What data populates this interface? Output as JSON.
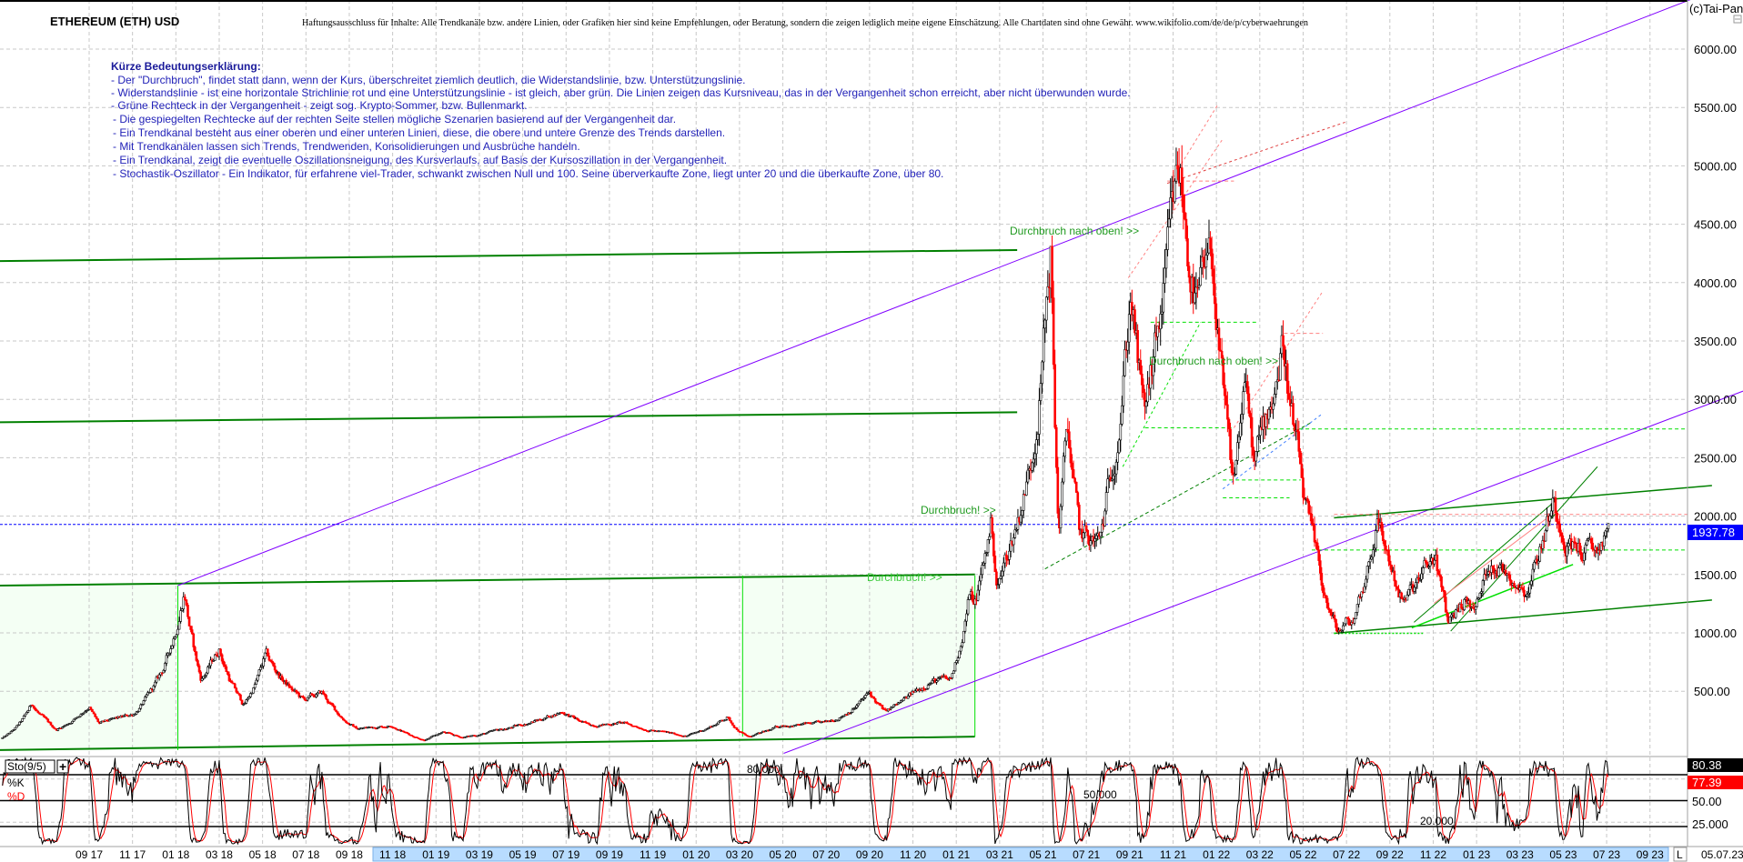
{
  "header": {
    "title": "ETHEREUM (ETH) USD",
    "disclaimer": "Haftungsausschluss für Inhalte: Alle Trendkanäle bzw. andere Linien, oder Grafiken hier sind keine Empfehlungen, oder Beratung, sondern die zeigen lediglich meine eigene Einschätzung. Alle Chartdaten sind ohne Gewähr.  www.wikifolio.com/de/de/p/cyberwaehrungen",
    "copyright": "(c)Tai-Pan"
  },
  "legend": {
    "title": "Kürze Bedeutungserklärung:",
    "items": [
      "- Der \"Durchbruch\", findet statt dann, wenn der Kurs, überschreitet ziemlich deutlich, die Widerstandslinie, bzw. Unterstützungslinie.",
      "- Widerstandslinie - ist eine horizontale Strichlinie rot und eine Unterstützungslinie - ist gleich, aber grün. Die Linien zeigen das Kursniveau, das in der Vergangenheit schon erreicht, aber nicht überwunden wurde.",
      "- Grüne Rechteck in der Vergangenheit - zeigt sog. Krypto-Sommer, bzw. Bullenmarkt.",
      "- Die gespiegelten Rechtecke auf der rechten Seite stellen mögliche Szenarien basierend auf der Vergangenheit dar.",
      "- Ein Trendkanal besteht aus einer oberen und einer unteren Linien, diese, die obere und untere Grenze des Trends darstellen.",
      "- Mit Trendkanälen lassen sich Trends, Trendwenden, Konsolidierungen und Ausbrüche handeln.",
      "- Ein Trendkanal, zeigt die eventuelle Oszillationsneigung, des Kursverlaufs, auf Basis der Kursoszillation in der Vergangenheit.",
      "- Stochastik-Oszillator - Ein Indikator, für erfahrene viel-Trader, schwankt zwischen Null und 100. Seine überverkaufte Zone, liegt unter 20 und die überkaufte Zone, über 80."
    ]
  },
  "annotations": {
    "breakout_up_1": "Durchbruch nach oben! >>",
    "breakout_up_2": "Durchbruch nach oben! >>",
    "breakout_1": "Durchbruch! >>",
    "breakout_2": "Durchbruch! >>"
  },
  "price_axis": {
    "ticks": [
      "6000.00",
      "5500.00",
      "5000.00",
      "4500.00",
      "4000.00",
      "3500.00",
      "3000.00",
      "2500.00",
      "2000.00",
      "1500.00",
      "1000.00",
      "500.00"
    ],
    "current_price": "1937.78"
  },
  "stochastic": {
    "name": "Sto(9/5)",
    "k_label": "%K",
    "d_label": "%D",
    "k_value": "80.38",
    "d_value": "77.39",
    "ticks": [
      "50.00",
      "25.000"
    ],
    "level_labels": [
      "80.000",
      "50.000",
      "20.000"
    ]
  },
  "date_axis": {
    "labels": [
      "09 17",
      "11 17",
      "01 18",
      "03 18",
      "05 18",
      "07 18",
      "09 18",
      "11 18",
      "01 19",
      "03 19",
      "05 19",
      "07 19",
      "09 19",
      "11 19",
      "01 20",
      "03 20",
      "05 20",
      "07 20",
      "09 20",
      "11 20",
      "01 21",
      "03 21",
      "05 21",
      "07 21",
      "09 21",
      "11 21",
      "01 22",
      "03 22",
      "05 22",
      "07 22",
      "09 22",
      "11 22",
      "01 23",
      "03 23",
      "05 23",
      "07 23",
      "09 23"
    ],
    "mode": "L",
    "current_date": "05.07.23"
  },
  "colors": {
    "up_candle": "#000000",
    "down_candle": "#ff0000",
    "channel": "#8000ff",
    "support_line": "#008000",
    "bright_green": "#00e000",
    "resistance": "#ff8080",
    "current_price_line": "#0000ff",
    "date_highlight": "#b8dcff"
  },
  "chart_data": {
    "type": "candlestick",
    "title": "ETHEREUM (ETH) USD",
    "ylim": [
      0,
      6000
    ],
    "y_scale": "linear",
    "grid": true,
    "price_keypoints": [
      [
        "2017-05-01",
        100
      ],
      [
        "2017-06-12",
        390
      ],
      [
        "2017-07-16",
        170
      ],
      [
        "2017-09-01",
        380
      ],
      [
        "2017-09-15",
        220
      ],
      [
        "2017-11-01",
        300
      ],
      [
        "2017-12-15",
        700
      ],
      [
        "2018-01-13",
        1400
      ],
      [
        "2018-02-06",
        600
      ],
      [
        "2018-03-01",
        870
      ],
      [
        "2018-04-05",
        380
      ],
      [
        "2018-05-05",
        800
      ],
      [
        "2018-06-28",
        420
      ],
      [
        "2018-07-24",
        480
      ],
      [
        "2018-09-12",
        180
      ],
      [
        "2018-11-01",
        210
      ],
      [
        "2018-12-15",
        85
      ],
      [
        "2019-01-10",
        150
      ],
      [
        "2019-02-07",
        105
      ],
      [
        "2019-04-01",
        170
      ],
      [
        "2019-06-26",
        330
      ],
      [
        "2019-08-01",
        210
      ],
      [
        "2019-09-18",
        230
      ],
      [
        "2019-11-25",
        140
      ],
      [
        "2019-12-18",
        120
      ],
      [
        "2020-02-14",
        280
      ],
      [
        "2020-03-13",
        110
      ],
      [
        "2020-05-01",
        210
      ],
      [
        "2020-07-01",
        225
      ],
      [
        "2020-09-01",
        480
      ],
      [
        "2020-09-23",
        320
      ],
      [
        "2020-11-24",
        600
      ],
      [
        "2020-12-23",
        580
      ],
      [
        "2021-01-18",
        1300
      ],
      [
        "2021-01-27",
        1250
      ],
      [
        "2021-02-20",
        1950
      ],
      [
        "2021-02-28",
        1400
      ],
      [
        "2021-04-15",
        2500
      ],
      [
        "2021-05-12",
        4300
      ],
      [
        "2021-05-23",
        1900
      ],
      [
        "2021-06-05",
        2800
      ],
      [
        "2021-06-22",
        1800
      ],
      [
        "2021-07-20",
        1750
      ],
      [
        "2021-09-03",
        4000
      ],
      [
        "2021-09-21",
        2800
      ],
      [
        "2021-10-30",
        4400
      ],
      [
        "2021-11-10",
        4850
      ],
      [
        "2021-12-04",
        3800
      ],
      [
        "2021-12-27",
        4100
      ],
      [
        "2022-01-24",
        2200
      ],
      [
        "2022-02-10",
        3200
      ],
      [
        "2022-02-24",
        2400
      ],
      [
        "2022-04-03",
        3550
      ],
      [
        "2022-05-12",
        1800
      ],
      [
        "2022-06-18",
        1000
      ],
      [
        "2022-07-10",
        1100
      ],
      [
        "2022-08-14",
        2000
      ],
      [
        "2022-09-21",
        1250
      ],
      [
        "2022-11-05",
        1650
      ],
      [
        "2022-11-21",
        1080
      ],
      [
        "2022-12-14",
        1300
      ],
      [
        "2022-12-30",
        1190
      ],
      [
        "2023-01-21",
        1650
      ],
      [
        "2023-03-10",
        1400
      ],
      [
        "2023-04-16",
        2130
      ],
      [
        "2023-05-10",
        1800
      ],
      [
        "2023-06-15",
        1650
      ],
      [
        "2023-07-05",
        1937.78
      ]
    ],
    "stochastic": {
      "k_period": 9,
      "d_period": 5,
      "levels": [
        20,
        50,
        80
      ],
      "last_k": 80.38,
      "last_d": 77.39
    }
  }
}
